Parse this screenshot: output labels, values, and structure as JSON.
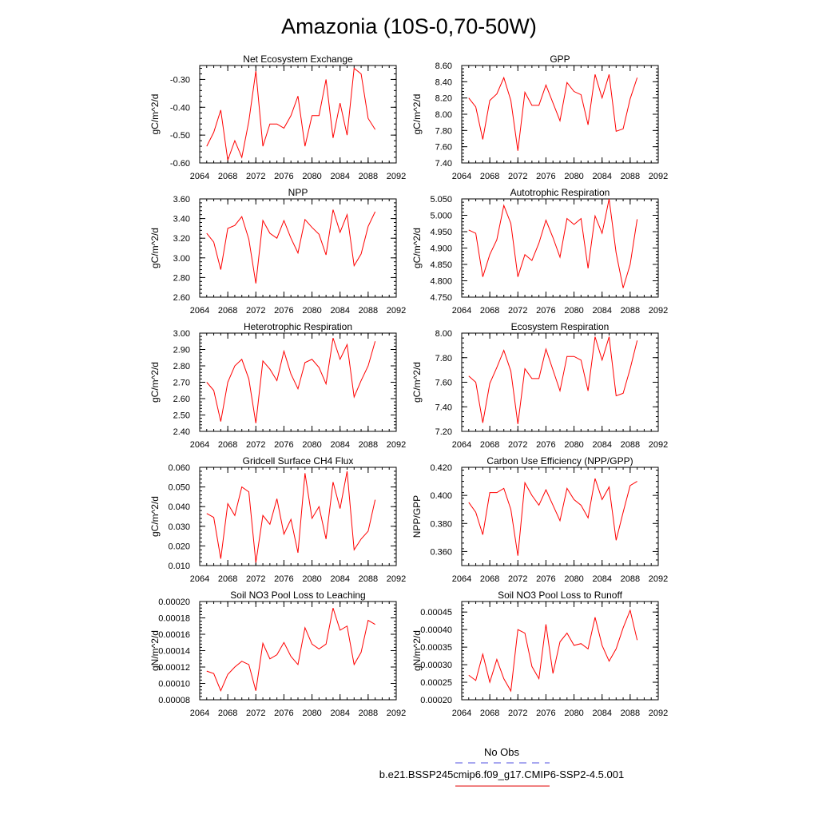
{
  "figure": {
    "title": "Amazonia (10S-0,70-50W)",
    "legend": {
      "obs_label": "No Obs",
      "obs_color": "#5050e0",
      "case_label": "b.e21.BSSP245cmip6.f09_g17.CMIP6-SSP2-4.5.001",
      "case_color": "#e00000"
    },
    "line_color": "#ff0000"
  },
  "chart_data": [
    {
      "type": "line",
      "title": "Net Ecosystem Exchange",
      "ylabel": "gC/m^2/d",
      "xlim": [
        2064,
        2092
      ],
      "ylim": [
        -0.6,
        -0.25
      ],
      "yticks": [
        -0.6,
        -0.5,
        -0.4,
        -0.3
      ],
      "ytick_labels": [
        "-0.60",
        "-0.50",
        "-0.40",
        "-0.30"
      ],
      "xticks": [
        2064,
        2068,
        2072,
        2076,
        2080,
        2084,
        2088,
        2092
      ],
      "xtick_labels": [
        "2064",
        "2068",
        "2072",
        "2076",
        "2080",
        "2084",
        "2088",
        "2092"
      ],
      "x": [
        2065,
        2066,
        2067,
        2068,
        2069,
        2070,
        2071,
        2072,
        2073,
        2074,
        2075,
        2076,
        2077,
        2078,
        2079,
        2080,
        2081,
        2082,
        2083,
        2084,
        2085,
        2086,
        2087,
        2088,
        2089
      ],
      "values": [
        -0.54,
        -0.49,
        -0.41,
        -0.59,
        -0.52,
        -0.58,
        -0.45,
        -0.27,
        -0.54,
        -0.46,
        -0.46,
        -0.475,
        -0.43,
        -0.36,
        -0.54,
        -0.43,
        -0.43,
        -0.3,
        -0.51,
        -0.385,
        -0.5,
        -0.26,
        -0.28,
        -0.44,
        -0.48
      ]
    },
    {
      "type": "line",
      "title": "GPP",
      "ylabel": "gC/m^2/d",
      "xlim": [
        2064,
        2092
      ],
      "ylim": [
        7.4,
        8.6
      ],
      "yticks": [
        7.4,
        7.6,
        7.8,
        8.0,
        8.2,
        8.4,
        8.6
      ],
      "ytick_labels": [
        "7.40",
        "7.60",
        "7.80",
        "8.00",
        "8.20",
        "8.40",
        "8.60"
      ],
      "xticks": [
        2064,
        2068,
        2072,
        2076,
        2080,
        2084,
        2088,
        2092
      ],
      "xtick_labels": [
        "2064",
        "2068",
        "2072",
        "2076",
        "2080",
        "2084",
        "2088",
        "2092"
      ],
      "x": [
        2065,
        2066,
        2067,
        2068,
        2069,
        2070,
        2071,
        2072,
        2073,
        2074,
        2075,
        2076,
        2077,
        2078,
        2079,
        2080,
        2081,
        2082,
        2083,
        2084,
        2085,
        2086,
        2087,
        2088,
        2089
      ],
      "values": [
        8.2,
        8.09,
        7.69,
        8.17,
        8.25,
        8.45,
        8.17,
        7.55,
        8.27,
        8.11,
        8.11,
        8.36,
        8.14,
        7.92,
        8.39,
        8.28,
        8.24,
        7.87,
        8.49,
        8.2,
        8.49,
        7.79,
        7.82,
        8.19,
        8.45
      ]
    },
    {
      "type": "line",
      "title": "NPP",
      "ylabel": "gC/m^2/d",
      "xlim": [
        2064,
        2092
      ],
      "ylim": [
        2.6,
        3.6
      ],
      "yticks": [
        2.6,
        2.8,
        3.0,
        3.2,
        3.4,
        3.6
      ],
      "ytick_labels": [
        "2.60",
        "2.80",
        "3.00",
        "3.20",
        "3.40",
        "3.60"
      ],
      "xticks": [
        2064,
        2068,
        2072,
        2076,
        2080,
        2084,
        2088,
        2092
      ],
      "xtick_labels": [
        "2064",
        "2068",
        "2072",
        "2076",
        "2080",
        "2084",
        "2088",
        "2092"
      ],
      "x": [
        2065,
        2066,
        2067,
        2068,
        2069,
        2070,
        2071,
        2072,
        2073,
        2074,
        2075,
        2076,
        2077,
        2078,
        2079,
        2080,
        2081,
        2082,
        2083,
        2084,
        2085,
        2086,
        2087,
        2088,
        2089
      ],
      "values": [
        3.25,
        3.16,
        2.88,
        3.3,
        3.33,
        3.42,
        3.19,
        2.74,
        3.38,
        3.25,
        3.2,
        3.38,
        3.2,
        3.05,
        3.39,
        3.31,
        3.24,
        3.03,
        3.49,
        3.26,
        3.44,
        2.92,
        3.04,
        3.32,
        3.47
      ]
    },
    {
      "type": "line",
      "title": "Autotrophic Respiration",
      "ylabel": "gC/m^2/d",
      "xlim": [
        2064,
        2092
      ],
      "ylim": [
        4.75,
        5.05
      ],
      "yticks": [
        4.75,
        4.8,
        4.85,
        4.9,
        4.95,
        5.0,
        5.05
      ],
      "ytick_labels": [
        "4.750",
        "4.800",
        "4.850",
        "4.900",
        "4.950",
        "5.000",
        "5.050"
      ],
      "xticks": [
        2064,
        2068,
        2072,
        2076,
        2080,
        2084,
        2088,
        2092
      ],
      "xtick_labels": [
        "2064",
        "2068",
        "2072",
        "2076",
        "2080",
        "2084",
        "2088",
        "2092"
      ],
      "x": [
        2065,
        2066,
        2067,
        2068,
        2069,
        2070,
        2071,
        2072,
        2073,
        2074,
        2075,
        2076,
        2077,
        2078,
        2079,
        2080,
        2081,
        2082,
        2083,
        2084,
        2085,
        2086,
        2087,
        2088,
        2089
      ],
      "values": [
        4.955,
        4.945,
        4.812,
        4.88,
        4.925,
        5.03,
        4.975,
        4.812,
        4.88,
        4.862,
        4.915,
        4.985,
        4.932,
        4.872,
        4.99,
        4.972,
        4.99,
        4.838,
        4.998,
        4.945,
        5.05,
        4.885,
        4.778,
        4.85,
        4.988
      ]
    },
    {
      "type": "line",
      "title": "Heterotrophic Respiration",
      "ylabel": "gC/m^2/d",
      "xlim": [
        2064,
        2092
      ],
      "ylim": [
        2.4,
        3.0
      ],
      "yticks": [
        2.4,
        2.5,
        2.6,
        2.7,
        2.8,
        2.9,
        3.0
      ],
      "ytick_labels": [
        "2.40",
        "2.50",
        "2.60",
        "2.70",
        "2.80",
        "2.90",
        "3.00"
      ],
      "xticks": [
        2064,
        2068,
        2072,
        2076,
        2080,
        2084,
        2088,
        2092
      ],
      "xtick_labels": [
        "2064",
        "2068",
        "2072",
        "2076",
        "2080",
        "2084",
        "2088",
        "2092"
      ],
      "x": [
        2065,
        2066,
        2067,
        2068,
        2069,
        2070,
        2071,
        2072,
        2073,
        2074,
        2075,
        2076,
        2077,
        2078,
        2079,
        2080,
        2081,
        2082,
        2083,
        2084,
        2085,
        2086,
        2087,
        2088,
        2089
      ],
      "values": [
        2.7,
        2.65,
        2.46,
        2.7,
        2.8,
        2.84,
        2.72,
        2.45,
        2.83,
        2.78,
        2.71,
        2.89,
        2.75,
        2.66,
        2.82,
        2.84,
        2.79,
        2.69,
        2.97,
        2.84,
        2.93,
        2.61,
        2.71,
        2.8,
        2.95
      ]
    },
    {
      "type": "line",
      "title": "Ecosystem Respiration",
      "ylabel": "gC/m^2/d",
      "xlim": [
        2064,
        2092
      ],
      "ylim": [
        7.2,
        8.0
      ],
      "yticks": [
        7.2,
        7.4,
        7.6,
        7.8,
        8.0
      ],
      "ytick_labels": [
        "7.20",
        "7.40",
        "7.60",
        "7.80",
        "8.00"
      ],
      "xticks": [
        2064,
        2068,
        2072,
        2076,
        2080,
        2084,
        2088,
        2092
      ],
      "xtick_labels": [
        "2064",
        "2068",
        "2072",
        "2076",
        "2080",
        "2084",
        "2088",
        "2092"
      ],
      "x": [
        2065,
        2066,
        2067,
        2068,
        2069,
        2070,
        2071,
        2072,
        2073,
        2074,
        2075,
        2076,
        2077,
        2078,
        2079,
        2080,
        2081,
        2082,
        2083,
        2084,
        2085,
        2086,
        2087,
        2088,
        2089
      ],
      "values": [
        7.65,
        7.6,
        7.27,
        7.59,
        7.72,
        7.86,
        7.69,
        7.26,
        7.71,
        7.63,
        7.63,
        7.87,
        7.7,
        7.53,
        7.81,
        7.81,
        7.78,
        7.53,
        7.97,
        7.78,
        7.97,
        7.49,
        7.51,
        7.71,
        7.94
      ]
    },
    {
      "type": "line",
      "title": "Gridcell Surface CH4 Flux",
      "ylabel": "gC/m^2/d",
      "xlim": [
        2064,
        2092
      ],
      "ylim": [
        0.01,
        0.06
      ],
      "yticks": [
        0.01,
        0.02,
        0.03,
        0.04,
        0.05,
        0.06
      ],
      "ytick_labels": [
        "0.010",
        "0.020",
        "0.030",
        "0.040",
        "0.050",
        "0.060"
      ],
      "xticks": [
        2064,
        2068,
        2072,
        2076,
        2080,
        2084,
        2088,
        2092
      ],
      "xtick_labels": [
        "2064",
        "2068",
        "2072",
        "2076",
        "2080",
        "2084",
        "2088",
        "2092"
      ],
      "x": [
        2065,
        2066,
        2067,
        2068,
        2069,
        2070,
        2071,
        2072,
        2073,
        2074,
        2075,
        2076,
        2077,
        2078,
        2079,
        2080,
        2081,
        2082,
        2083,
        2084,
        2085,
        2086,
        2087,
        2088,
        2089
      ],
      "values": [
        0.0365,
        0.0345,
        0.0135,
        0.0415,
        0.0355,
        0.05,
        0.0475,
        0.0115,
        0.0355,
        0.031,
        0.044,
        0.026,
        0.0335,
        0.0165,
        0.057,
        0.034,
        0.04,
        0.0235,
        0.0525,
        0.039,
        0.058,
        0.018,
        0.0235,
        0.0275,
        0.0435
      ]
    },
    {
      "type": "line",
      "title": "Carbon Use Efficiency (NPP/GPP)",
      "ylabel": "NPP/GPP",
      "xlim": [
        2064,
        2092
      ],
      "ylim": [
        0.35,
        0.42
      ],
      "yticks": [
        0.36,
        0.38,
        0.4,
        0.42
      ],
      "ytick_labels": [
        "0.360",
        "0.380",
        "0.400",
        "0.420"
      ],
      "xticks": [
        2064,
        2068,
        2072,
        2076,
        2080,
        2084,
        2088,
        2092
      ],
      "xtick_labels": [
        "2064",
        "2068",
        "2072",
        "2076",
        "2080",
        "2084",
        "2088",
        "2092"
      ],
      "x": [
        2065,
        2066,
        2067,
        2068,
        2069,
        2070,
        2071,
        2072,
        2073,
        2074,
        2075,
        2076,
        2077,
        2078,
        2079,
        2080,
        2081,
        2082,
        2083,
        2084,
        2085,
        2086,
        2087,
        2088,
        2089
      ],
      "values": [
        0.395,
        0.388,
        0.372,
        0.402,
        0.402,
        0.405,
        0.39,
        0.357,
        0.409,
        0.4,
        0.393,
        0.404,
        0.393,
        0.382,
        0.405,
        0.397,
        0.393,
        0.384,
        0.412,
        0.397,
        0.406,
        0.368,
        0.388,
        0.407,
        0.41
      ]
    },
    {
      "type": "line",
      "title": "Soil NO3 Pool Loss to Leaching",
      "ylabel": "gN/m^2/d",
      "xlim": [
        2064,
        2092
      ],
      "ylim": [
        8e-05,
        0.0002
      ],
      "yticks": [
        8e-05,
        0.0001,
        0.00012,
        0.00014,
        0.00016,
        0.00018,
        0.0002
      ],
      "ytick_labels": [
        "0.00008",
        "0.00010",
        "0.00012",
        "0.00014",
        "0.00016",
        "0.00018",
        "0.00020"
      ],
      "xticks": [
        2064,
        2068,
        2072,
        2076,
        2080,
        2084,
        2088,
        2092
      ],
      "xtick_labels": [
        "2064",
        "2068",
        "2072",
        "2076",
        "2080",
        "2084",
        "2088",
        "2092"
      ],
      "x": [
        2065,
        2066,
        2067,
        2068,
        2069,
        2070,
        2071,
        2072,
        2073,
        2074,
        2075,
        2076,
        2077,
        2078,
        2079,
        2080,
        2081,
        2082,
        2083,
        2084,
        2085,
        2086,
        2087,
        2088,
        2089
      ],
      "values": [
        0.000115,
        0.000112,
        9.1e-05,
        0.000111,
        0.00012,
        0.000127,
        0.000123,
        9.1e-05,
        0.000149,
        0.00013,
        0.000135,
        0.00015,
        0.000133,
        0.000123,
        0.000168,
        0.000148,
        0.000142,
        0.000148,
        0.000192,
        0.000165,
        0.00017,
        0.000123,
        0.000138,
        0.000177,
        0.000172
      ]
    },
    {
      "type": "line",
      "title": "Soil NO3 Pool Loss to Runoff",
      "ylabel": "gN/m^2/d",
      "xlim": [
        2064,
        2092
      ],
      "ylim": [
        0.0002,
        0.00048
      ],
      "yticks": [
        0.0002,
        0.00025,
        0.0003,
        0.00035,
        0.0004,
        0.00045
      ],
      "ytick_labels": [
        "0.00020",
        "0.00025",
        "0.00030",
        "0.00035",
        "0.00040",
        "0.00045"
      ],
      "xticks": [
        2064,
        2068,
        2072,
        2076,
        2080,
        2084,
        2088,
        2092
      ],
      "xtick_labels": [
        "2064",
        "2068",
        "2072",
        "2076",
        "2080",
        "2084",
        "2088",
        "2092"
      ],
      "x": [
        2065,
        2066,
        2067,
        2068,
        2069,
        2070,
        2071,
        2072,
        2073,
        2074,
        2075,
        2076,
        2077,
        2078,
        2079,
        2080,
        2081,
        2082,
        2083,
        2084,
        2085,
        2086,
        2087,
        2088,
        2089
      ],
      "values": [
        0.00027,
        0.000255,
        0.00033,
        0.00025,
        0.000315,
        0.00026,
        0.000225,
        0.0004,
        0.00039,
        0.000295,
        0.00026,
        0.000415,
        0.000275,
        0.000365,
        0.00039,
        0.000355,
        0.00036,
        0.000345,
        0.000435,
        0.000355,
        0.00031,
        0.000345,
        0.000405,
        0.000455,
        0.00037
      ]
    }
  ]
}
